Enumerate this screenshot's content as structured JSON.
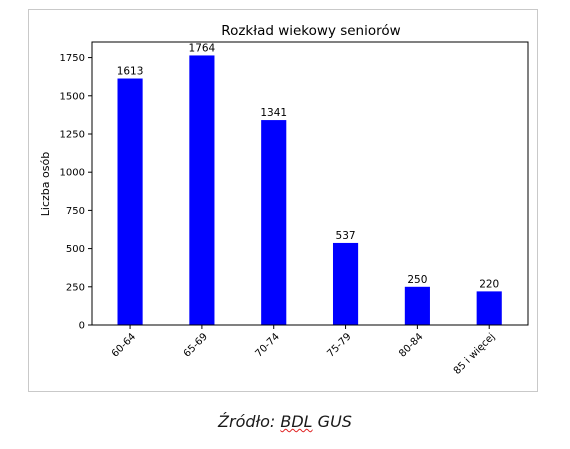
{
  "chart_data": {
    "type": "bar",
    "title": "Rozkład wiekowy seniorów",
    "xlabel": "",
    "ylabel": "Liczba osób",
    "categories": [
      "60-64",
      "65-69",
      "70-74",
      "75-79",
      "80-84",
      "85 i więcej"
    ],
    "values": [
      1613,
      1764,
      1341,
      537,
      250,
      220
    ],
    "data_labels": [
      "1613",
      "1764",
      "1341",
      "537",
      "250",
      "220"
    ],
    "ylim": [
      0,
      1852
    ],
    "yticks": [
      0,
      250,
      500,
      750,
      1000,
      1250,
      1500,
      1750
    ],
    "bar_color": "#0000ff",
    "grid": false
  },
  "caption": {
    "prefix": "Źródło: ",
    "underlined": "BDL",
    "suffix": " GUS"
  }
}
